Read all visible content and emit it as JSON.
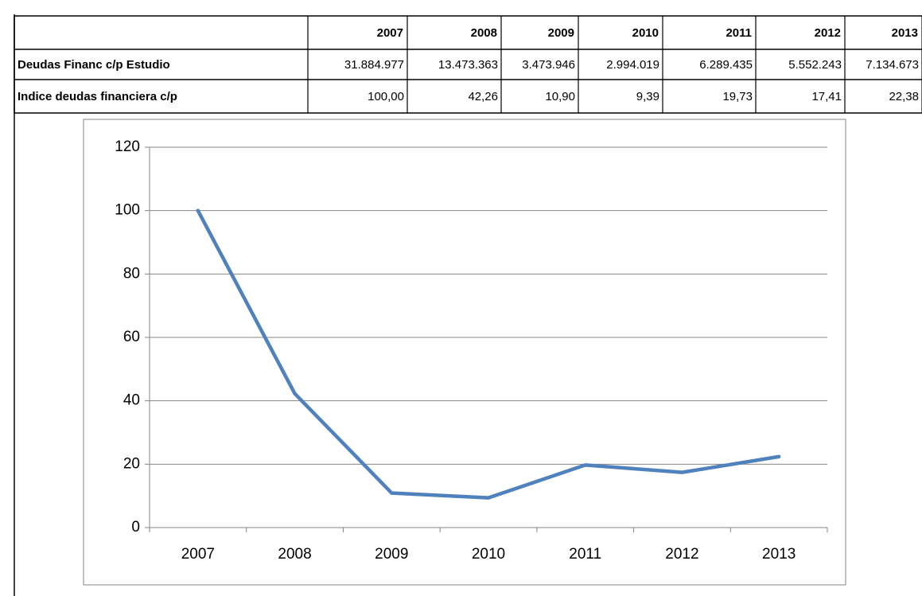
{
  "table": {
    "header": [
      "2007",
      "2008",
      "2009",
      "2010",
      "2011",
      "2012",
      "2013"
    ],
    "rows": [
      [
        "Deudas Financ c/p  Estudio",
        "31.884.977",
        "13.473.363",
        "3.473.946",
        "2.994.019",
        "6.289.435",
        "5.552.243",
        "7.134.673"
      ],
      [
        "Indice deudas financiera c/p",
        "100,00",
        "42,26",
        "10,90",
        "9,39",
        "19,73",
        "17,41",
        "22,38"
      ]
    ]
  },
  "chart_data": {
    "type": "line",
    "categories": [
      "2007",
      "2008",
      "2009",
      "2010",
      "2011",
      "2012",
      "2013"
    ],
    "series": [
      {
        "color": "#4f81bd",
        "values": [
          100,
          42.26,
          10.9,
          9.39,
          19.73,
          17.41,
          22.38
        ]
      }
    ],
    "ylim": [
      0,
      120
    ],
    "yticks": [
      0,
      20,
      40,
      60,
      80,
      100,
      120
    ],
    "grid": true
  }
}
